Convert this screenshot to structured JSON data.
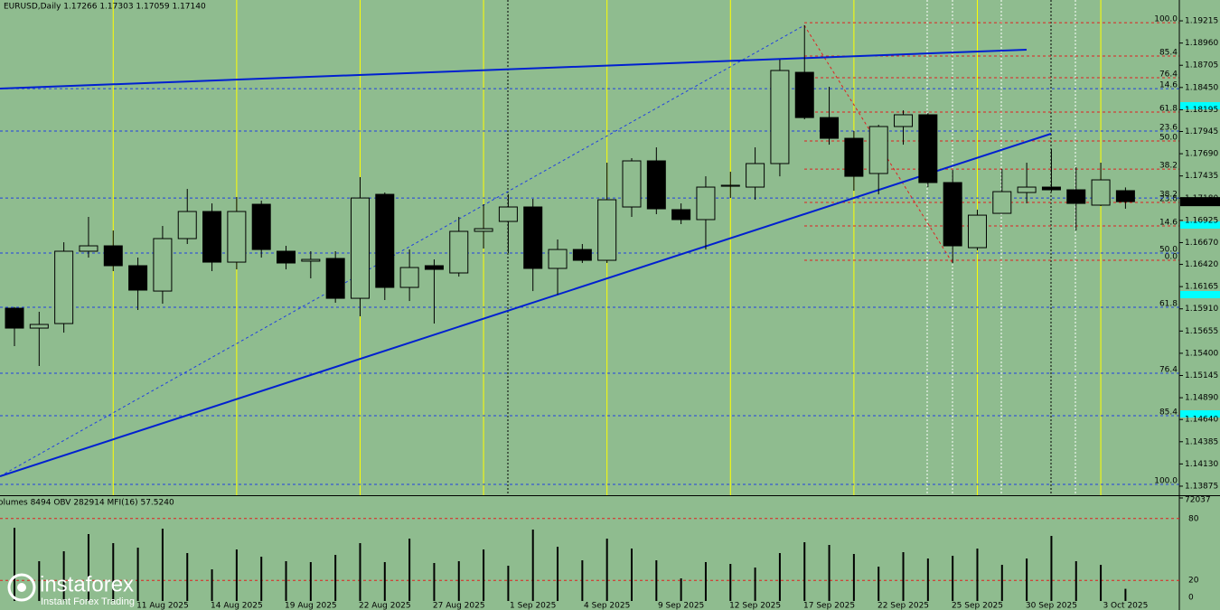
{
  "header": "EURUSD,Daily  1.17266 1.17303 1.17059 1.17140",
  "logo": {
    "name": "instaforex",
    "tagline": "Instant Forex Trading"
  },
  "chart_data": [
    {
      "type": "candlestick",
      "categories": [
        null,
        null,
        null,
        null,
        null,
        null,
        "11 Aug 2025",
        null,
        null,
        "14 Aug 2025",
        null,
        null,
        "19 Aug 2025",
        null,
        null,
        "22 Aug 2025",
        null,
        null,
        "27 Aug 2025",
        null,
        null,
        "1 Sep 2025",
        null,
        null,
        "4 Sep 2025",
        null,
        null,
        "9 Sep 2025",
        null,
        null,
        "12 Sep 2025",
        null,
        null,
        "17 Sep 2025",
        null,
        null,
        "22 Sep 2025",
        null,
        null,
        "25 Sep 2025",
        null,
        null,
        "30 Sep 2025",
        null,
        null,
        "3 Oct 2025"
      ],
      "open": [
        1.15917,
        1.15689,
        1.15741,
        1.16571,
        1.16633,
        1.16405,
        1.16114,
        1.16716,
        1.17027,
        1.16446,
        1.1711,
        1.16571,
        1.16457,
        1.16488,
        1.16031,
        1.17224,
        1.16156,
        1.16405,
        1.16322,
        1.16799,
        1.16913,
        1.17079,
        1.16374,
        1.16591,
        1.16467,
        1.17079,
        1.17608,
        1.17048,
        1.16934,
        1.17317,
        1.17307,
        1.17577,
        1.18624,
        1.18105,
        1.17867,
        1.17463,
        1.18002,
        1.18137,
        1.17359,
        1.16612,
        1.17006,
        1.17245,
        1.17307,
        1.17276,
        1.171,
        1.17266
      ],
      "high": [
        1.1593,
        1.15876,
        1.16674,
        1.16965,
        1.16809,
        1.16498,
        1.16861,
        1.17286,
        1.1712,
        1.17193,
        1.17151,
        1.16633,
        1.16571,
        1.16571,
        1.17421,
        1.17245,
        1.16591,
        1.16477,
        1.16965,
        1.1711,
        1.17224,
        1.17172,
        1.16706,
        1.16654,
        1.17587,
        1.17639,
        1.17763,
        1.1712,
        1.17431,
        1.17483,
        1.17763,
        1.18769,
        1.19163,
        1.18458,
        1.1795,
        1.18022,
        1.18188,
        1.18157,
        1.17504,
        1.17048,
        1.17514,
        1.17587,
        1.17743,
        1.17535,
        1.17587,
        1.17303
      ],
      "low": [
        1.15482,
        1.15254,
        1.15637,
        1.16498,
        1.16343,
        1.15897,
        1.15969,
        1.16654,
        1.16343,
        1.16363,
        1.16498,
        1.16363,
        1.1626,
        1.1598,
        1.15824,
        1.16011,
        1.16,
        1.15741,
        1.1628,
        1.16602,
        1.1655,
        1.16114,
        1.16073,
        1.16436,
        1.16436,
        1.16965,
        1.16996,
        1.16882,
        1.16591,
        1.17182,
        1.17162,
        1.17431,
        1.18085,
        1.17794,
        1.17265,
        1.17224,
        1.17794,
        1.17307,
        1.16436,
        1.16581,
        1.17006,
        1.1712,
        1.17255,
        1.16809,
        1.1709,
        1.17059
      ],
      "close": [
        1.15689,
        1.15731,
        1.16571,
        1.16633,
        1.16405,
        1.16125,
        1.16716,
        1.17027,
        1.16446,
        1.17027,
        1.16591,
        1.16436,
        1.16477,
        1.16031,
        1.17182,
        1.16156,
        1.16384,
        1.16363,
        1.16799,
        1.1683,
        1.17079,
        1.16374,
        1.16591,
        1.16467,
        1.17162,
        1.17608,
        1.17058,
        1.16934,
        1.17307,
        1.17328,
        1.17577,
        1.18645,
        1.18105,
        1.17867,
        1.17431,
        1.18002,
        1.18137,
        1.17359,
        1.16633,
        1.16985,
        1.17255,
        1.17307,
        1.17276,
        1.1712,
        1.1739,
        1.1714
      ],
      "up_color": "#8fbc8f",
      "down_color": "#000000",
      "ylim": [
        1.13771,
        1.19454
      ],
      "yticks": [
        {
          "value": 1.19215,
          "label": "1.19215"
        },
        {
          "value": 1.1896,
          "label": "1.18960"
        },
        {
          "value": 1.18705,
          "label": "1.18705"
        },
        {
          "value": 1.1845,
          "label": "1.18450"
        },
        {
          "value": 1.18195,
          "label": "1.18195"
        },
        {
          "value": 1.17945,
          "label": "1.17945"
        },
        {
          "value": 1.1769,
          "label": "1.17690"
        },
        {
          "value": 1.17435,
          "label": "1.17435"
        },
        {
          "value": 1.1718,
          "label": "1.17180"
        },
        {
          "value": 1.16925,
          "label": "1.16925"
        },
        {
          "value": 1.1667,
          "label": "1.16670"
        },
        {
          "value": 1.1642,
          "label": "1.16420"
        },
        {
          "value": 1.16165,
          "label": "1.16165"
        },
        {
          "value": 1.1591,
          "label": "1.15910"
        },
        {
          "value": 1.15655,
          "label": "1.15655"
        },
        {
          "value": 1.154,
          "label": "1.15400"
        },
        {
          "value": 1.15145,
          "label": "1.15145"
        },
        {
          "value": 1.1489,
          "label": "1.14890"
        },
        {
          "value": 1.1464,
          "label": "1.14640"
        },
        {
          "value": 1.14385,
          "label": "1.14385"
        },
        {
          "value": 1.1413,
          "label": "1.14130"
        },
        {
          "value": 1.13875,
          "label": "1.13875"
        }
      ],
      "last_price_label": "1.17140",
      "fib_red": {
        "color": "#e02020",
        "levels": [
          {
            "label": "100.0",
            "value": 1.19194
          },
          {
            "label": "85.4",
            "value": 1.18811
          },
          {
            "label": "76.4",
            "value": 1.18562
          },
          {
            "label": "61.8",
            "value": 1.18168
          },
          {
            "label": "50.0",
            "value": 1.17836
          },
          {
            "label": "38.2",
            "value": 1.17514
          },
          {
            "label": "23.6",
            "value": 1.17131
          },
          {
            "label": "14.6",
            "value": 1.16861
          },
          {
            "label": "0.0",
            "value": 1.16467
          }
        ]
      },
      "fib_blue": {
        "color": "#2040e0",
        "levels": [
          {
            "label": "14.6",
            "value": 1.18437
          },
          {
            "label": "23.6",
            "value": 1.1795
          },
          {
            "label": "38.2",
            "value": 1.17182
          },
          {
            "label": "50.0",
            "value": 1.1655
          },
          {
            "label": "61.8",
            "value": 1.15928
          },
          {
            "label": "76.4",
            "value": 1.15171
          },
          {
            "label": "85.4",
            "value": 1.14683
          },
          {
            "label": "100.0",
            "value": 1.13895
          }
        ]
      }
    },
    {
      "type": "bar",
      "title": "olumes 8494  OBV 282914  MFI(16) 57.5240",
      "values": [
        51190,
        27810,
        34760,
        46770,
        40450,
        37290,
        50560,
        33500,
        22120,
        36020,
        30970,
        27810,
        27180,
        32230,
        40450,
        27180,
        43610,
        26540,
        27810,
        36020,
        24650,
        49930,
        37920,
        28440,
        43610,
        36660,
        28440,
        15800,
        27180,
        25910,
        23380,
        33500,
        41080,
        39180,
        32860,
        24020,
        34130,
        29700,
        31600,
        36660,
        25280,
        29700,
        45500,
        27810,
        25280,
        8494
      ],
      "color": "#000000",
      "ylim": [
        0,
        72037
      ],
      "yticks": [
        72037
      ],
      "y2lim": [
        0,
        100
      ],
      "y2ticks": [
        0,
        20,
        80
      ]
    }
  ]
}
